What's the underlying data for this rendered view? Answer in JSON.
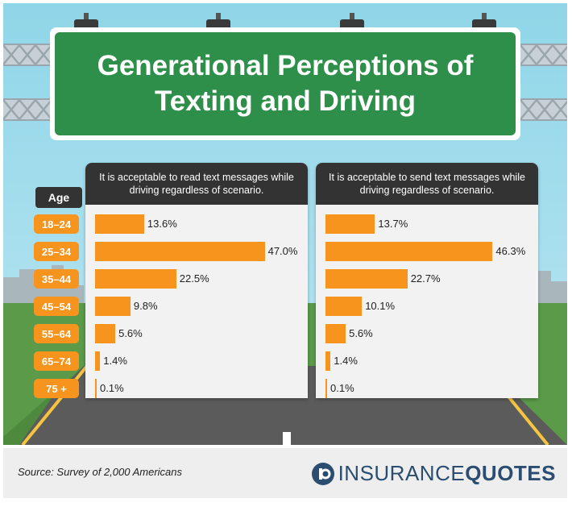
{
  "title": "Generational Perceptions of Texting and Driving",
  "age_header": "Age",
  "source": "Source: Survey of 2,000 Americans",
  "logo": {
    "part1": "INSURANCE",
    "part2": "QUOTES"
  },
  "colors": {
    "bar": "#f7941e",
    "sign": "#2e8f4a",
    "header": "#333333",
    "logo": "#2a4d70"
  },
  "chart_data": [
    {
      "type": "bar",
      "orientation": "horizontal",
      "title": "It is acceptable to read text messages while driving regardless of scenario.",
      "categories": [
        "18–24",
        "25–34",
        "35–44",
        "45–54",
        "55–64",
        "65–74",
        "75 +"
      ],
      "values": [
        13.6,
        47.0,
        22.5,
        9.8,
        5.6,
        1.4,
        0.1
      ],
      "labels": [
        "13.6%",
        "47.0%",
        "22.5%",
        "9.8%",
        "5.6%",
        "1.4%",
        "0.1%"
      ],
      "xlim": [
        0,
        50
      ],
      "grid": false
    },
    {
      "type": "bar",
      "orientation": "horizontal",
      "title": "It is acceptable to send text messages while driving regardless of scenario.",
      "categories": [
        "18–24",
        "25–34",
        "35–44",
        "45–54",
        "55–64",
        "65–74",
        "75 +"
      ],
      "values": [
        13.7,
        46.3,
        22.7,
        10.1,
        5.6,
        1.4,
        0.1
      ],
      "labels": [
        "13.7%",
        "46.3%",
        "22.7%",
        "10.1%",
        "5.6%",
        "1.4%",
        "0.1%"
      ],
      "xlim": [
        0,
        50
      ],
      "grid": false
    }
  ]
}
